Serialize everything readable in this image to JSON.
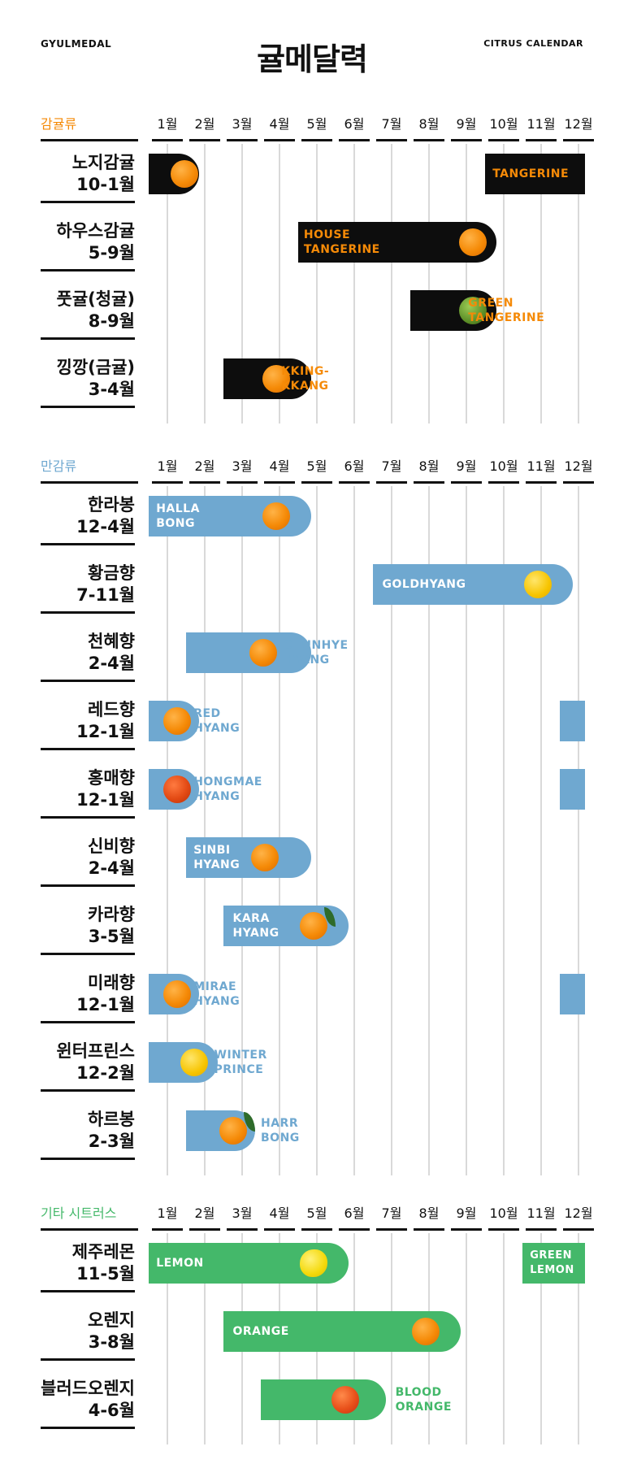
{
  "header": {
    "brand_left": "GYULMEDAL",
    "title": "귤메달력",
    "brand_right": "CITRUS CALENDAR"
  },
  "months": [
    "1월",
    "2월",
    "3월",
    "4월",
    "5월",
    "6월",
    "7월",
    "8월",
    "9월",
    "10월",
    "11월",
    "12월"
  ],
  "colors": {
    "black": "#0d0d0d",
    "blue": "#6fa8d0",
    "green": "#44b86a",
    "orange_text": "#f58a07",
    "blue_text": "#6fa8d0",
    "green_text": "#44b86a"
  },
  "sections": [
    {
      "label": "감귤류",
      "label_color": "#f58a07",
      "rows": [
        {
          "name": "노지감귤",
          "range": "10-1월",
          "fruit": "tangerine",
          "bars": [
            {
              "start": 1,
              "end": 1
            },
            {
              "start": 10,
              "end": 12
            }
          ],
          "text": "TANGERINE",
          "text_color": "#f58a07"
        },
        {
          "name": "하우스감귤",
          "range": "5-9월",
          "fruit": "tangerine",
          "bars": [
            {
              "start": 5,
              "end": 9
            }
          ],
          "text": "HOUSE\nTANGERINE",
          "text_color": "#f58a07"
        },
        {
          "name": "풋귤(청귤)",
          "range": "8-9월",
          "fruit": "green",
          "bars": [
            {
              "start": 8,
              "end": 9
            }
          ],
          "text": "GREEN\nTANGERINE",
          "text_color": "#f58a07"
        },
        {
          "name": "낑깡(금귤)",
          "range": "3-4월",
          "fruit": "tangerine",
          "bars": [
            {
              "start": 3,
              "end": 4
            }
          ],
          "text": "KKING-\nKKANG",
          "text_color": "#f58a07"
        }
      ]
    },
    {
      "label": "만감류",
      "label_color": "#6fa8d0",
      "rows": [
        {
          "name": "한라봉",
          "range": "12-4월",
          "fruit": "tangerine",
          "text": "HALLA\nBONG"
        },
        {
          "name": "황금향",
          "range": "7-11월",
          "fruit": "yellow",
          "text": "GOLDHYANG"
        },
        {
          "name": "천혜향",
          "range": "2-4월",
          "fruit": "tangerine",
          "text": "CHUNHYE\nHYANG"
        },
        {
          "name": "레드향",
          "range": "12-1월",
          "fruit": "tangerine",
          "text": "RED\nHYANG"
        },
        {
          "name": "홍매향",
          "range": "12-1월",
          "fruit": "red",
          "text": "HONGMAE\nHYANG"
        },
        {
          "name": "신비향",
          "range": "2-4월",
          "fruit": "tangerine",
          "text": "SINBI\nHYANG"
        },
        {
          "name": "카라향",
          "range": "3-5월",
          "fruit": "tangerine",
          "text": "KARA\nHYANG"
        },
        {
          "name": "미래향",
          "range": "12-1월",
          "fruit": "tangerine",
          "text": "MIRAE\nHYANG"
        },
        {
          "name": "윈터프린스",
          "range": "12-2월",
          "fruit": "yellow",
          "text": "WINTER\nPRINCE"
        },
        {
          "name": "하르봉",
          "range": "2-3월",
          "fruit": "tangerine",
          "text": "HARR\nBONG"
        }
      ]
    },
    {
      "label": "기타 시트러스",
      "label_color": "#44b86a",
      "rows": [
        {
          "name": "제주레몬",
          "range": "11-5월",
          "fruit": "lemon",
          "text": "LEMON",
          "text2": "GREEN\nLEMON"
        },
        {
          "name": "오렌지",
          "range": "3-8월",
          "fruit": "tangerine",
          "text": "ORANGE"
        },
        {
          "name": "블러드오렌지",
          "range": "4-6월",
          "fruit": "blood",
          "text": "BLOOD\nORANGE"
        }
      ]
    }
  ]
}
